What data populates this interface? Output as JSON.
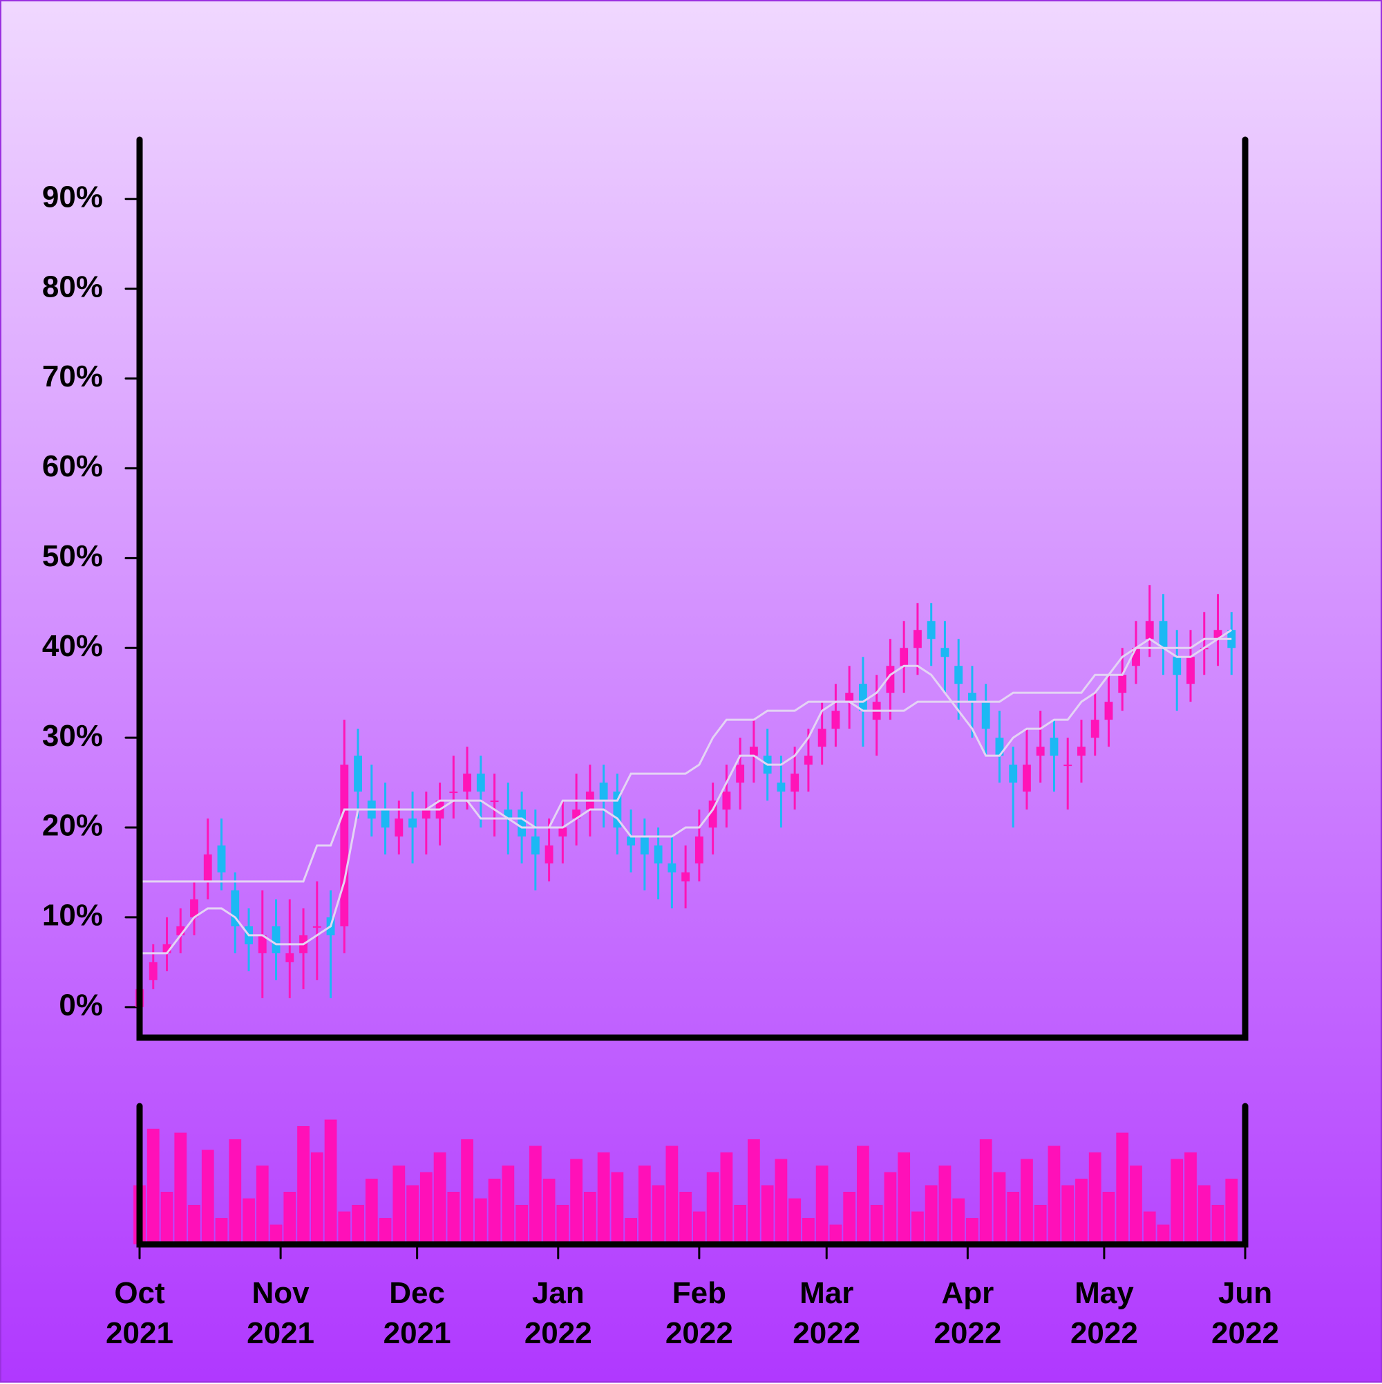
{
  "chart_data": {
    "type": "candlestick",
    "colors": {
      "up": "#ff14b8",
      "down": "#1cb8f4",
      "lines": "#e4d4f4",
      "volume": "#ff10b8"
    },
    "open": [
      0,
      3,
      6,
      8,
      10,
      14,
      18,
      13,
      9,
      6,
      9,
      5,
      6,
      9,
      10,
      9,
      28,
      23,
      22,
      19,
      21,
      21,
      21,
      24,
      24,
      26,
      23,
      22,
      22,
      19,
      16,
      19,
      21,
      22,
      25,
      24,
      19,
      19,
      18,
      16,
      14,
      16,
      20,
      22,
      25,
      28,
      28,
      25,
      24,
      27,
      29,
      31,
      34,
      36,
      32,
      35,
      38,
      40,
      43,
      40,
      38,
      35,
      34,
      30,
      27,
      24,
      28,
      30,
      27,
      28,
      30,
      32,
      35,
      38,
      41,
      43,
      39,
      36,
      40,
      41,
      42
    ],
    "high": [
      4,
      7,
      10,
      11,
      14,
      21,
      21,
      15,
      11,
      13,
      12,
      12,
      11,
      14,
      13,
      32,
      31,
      27,
      25,
      23,
      24,
      24,
      25,
      28,
      29,
      28,
      26,
      25,
      24,
      22,
      21,
      23,
      26,
      27,
      27,
      26,
      22,
      21,
      20,
      19,
      18,
      22,
      25,
      27,
      30,
      32,
      31,
      28,
      29,
      31,
      34,
      36,
      38,
      39,
      37,
      41,
      43,
      45,
      45,
      43,
      41,
      38,
      36,
      33,
      29,
      31,
      33,
      32,
      30,
      32,
      35,
      37,
      40,
      43,
      47,
      46,
      42,
      42,
      44,
      46,
      44
    ],
    "low": [
      -2,
      2,
      4,
      6,
      8,
      12,
      13,
      6,
      4,
      1,
      3,
      1,
      2,
      3,
      1,
      6,
      21,
      19,
      17,
      17,
      16,
      17,
      18,
      21,
      22,
      20,
      19,
      17,
      16,
      13,
      14,
      16,
      18,
      19,
      20,
      17,
      15,
      13,
      12,
      11,
      11,
      14,
      17,
      20,
      22,
      25,
      23,
      20,
      22,
      24,
      27,
      29,
      31,
      29,
      28,
      32,
      35,
      37,
      38,
      35,
      32,
      30,
      28,
      25,
      20,
      22,
      25,
      24,
      22,
      25,
      28,
      29,
      33,
      36,
      39,
      37,
      33,
      34,
      37,
      38,
      37
    ],
    "close": [
      2,
      5,
      7,
      9,
      12,
      17,
      15,
      9,
      7,
      8,
      6,
      6,
      8,
      9,
      8,
      27,
      24,
      21,
      20,
      21,
      20,
      22,
      23,
      24,
      26,
      24,
      23,
      21,
      19,
      17,
      18,
      20,
      22,
      24,
      23,
      20,
      18,
      17,
      16,
      15,
      15,
      19,
      23,
      24,
      27,
      29,
      26,
      24,
      26,
      28,
      31,
      33,
      35,
      33,
      34,
      38,
      40,
      42,
      41,
      39,
      36,
      34,
      31,
      28,
      25,
      27,
      29,
      28,
      27,
      29,
      32,
      34,
      37,
      40,
      43,
      40,
      37,
      39,
      40,
      42,
      40
    ],
    "volume": [
      45,
      88,
      40,
      85,
      30,
      72,
      20,
      80,
      35,
      60,
      15,
      40,
      90,
      70,
      95,
      25,
      30,
      50,
      20,
      60,
      45,
      55,
      70,
      40,
      80,
      35,
      50,
      60,
      30,
      75,
      50,
      30,
      65,
      40,
      70,
      55,
      20,
      60,
      45,
      75,
      40,
      25,
      55,
      70,
      30,
      80,
      45,
      65,
      35,
      20,
      60,
      15,
      40,
      75,
      30,
      55,
      70,
      25,
      45,
      60,
      35,
      20,
      80,
      55,
      40,
      65,
      30,
      75,
      45,
      50,
      70,
      40,
      85,
      60,
      25,
      15,
      65,
      70,
      45,
      30,
      50
    ],
    "lines": [
      [
        6,
        6,
        6,
        8,
        10,
        11,
        11,
        10,
        8,
        8,
        7,
        7,
        7,
        8,
        9,
        14,
        22,
        22,
        22,
        22,
        22,
        22,
        22,
        23,
        23,
        23,
        22,
        21,
        21,
        20,
        20,
        20,
        21,
        22,
        22,
        21,
        19,
        19,
        19,
        19,
        20,
        20,
        22,
        25,
        28,
        28,
        27,
        27,
        28,
        30,
        33,
        34,
        34,
        34,
        35,
        37,
        38,
        38,
        37,
        35,
        33,
        31,
        28,
        28,
        30,
        31,
        31,
        32,
        32,
        34,
        35,
        37,
        39,
        40,
        41,
        40,
        39,
        39,
        40,
        41,
        42
      ],
      [
        14,
        14,
        14,
        14,
        14,
        14,
        14,
        14,
        14,
        14,
        14,
        14,
        14,
        18,
        18,
        22,
        22,
        22,
        22,
        22,
        22,
        22,
        23,
        23,
        23,
        21,
        21,
        21,
        20,
        20,
        20,
        23,
        23,
        23,
        23,
        23,
        26,
        26,
        26,
        26,
        26,
        27,
        30,
        32,
        32,
        32,
        33,
        33,
        33,
        34,
        34,
        34,
        34,
        33,
        33,
        33,
        33,
        34,
        34,
        34,
        34,
        34,
        34,
        34,
        35,
        35,
        35,
        35,
        35,
        35,
        37,
        37,
        37,
        40,
        40,
        40,
        40,
        40,
        41,
        41,
        41
      ]
    ],
    "ylim": [
      -3.4,
      96.6
    ],
    "yticks": [
      {
        "value": 0,
        "label": "0%"
      },
      {
        "value": 10,
        "label": "10%"
      },
      {
        "value": 20,
        "label": "20%"
      },
      {
        "value": 30,
        "label": "30%"
      },
      {
        "value": 40,
        "label": "40%"
      },
      {
        "value": 50,
        "label": "50%"
      },
      {
        "value": 60,
        "label": "60%"
      },
      {
        "value": 70,
        "label": "70%"
      },
      {
        "value": 80,
        "label": "80%"
      },
      {
        "value": 90,
        "label": "90%"
      }
    ],
    "xlim": [
      0,
      81
    ],
    "xticks": [
      {
        "value": 0,
        "label": "Oct\n2021"
      },
      {
        "value": 10.333,
        "label": "Nov\n2021"
      },
      {
        "value": 20.333,
        "label": "Dec\n2021"
      },
      {
        "value": 30.667,
        "label": "Jan\n2022"
      },
      {
        "value": 41,
        "label": "Feb\n2022"
      },
      {
        "value": 50.333,
        "label": "Mar\n2022"
      },
      {
        "value": 60.667,
        "label": "Apr\n2022"
      },
      {
        "value": 70.667,
        "label": "May\n2022"
      },
      {
        "value": 81,
        "label": "Jun\n2022"
      }
    ]
  }
}
